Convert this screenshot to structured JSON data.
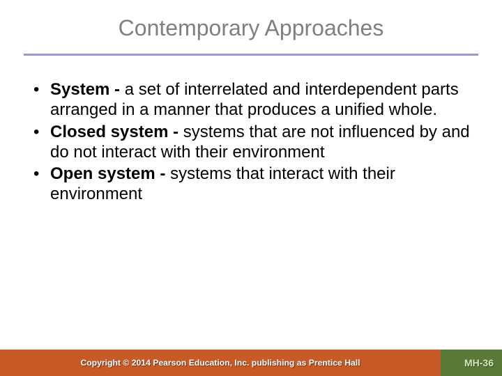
{
  "title": "Contemporary Approaches",
  "title_color": "#808080",
  "title_fontsize": 32,
  "divider_color": "#9999cc",
  "body_fontsize": 24,
  "body_color": "#000000",
  "bullets": [
    {
      "term": "System - ",
      "definition": "a set of interrelated and interdependent parts arranged in a manner that produces a unified whole."
    },
    {
      "term": "Closed system - ",
      "definition": "systems that are not influenced by and do not interact with their environment"
    },
    {
      "term": "Open system - ",
      "definition": "systems that interact with their environment"
    }
  ],
  "footer": {
    "left_bg": "#c85a28",
    "right_bg": "#5a7a3a",
    "left_width": 632,
    "right_width": 88,
    "copyright": "Copyright © 2014 Pearson Education, Inc. publishing as Prentice Hall",
    "copyright_color": "#ffffff",
    "page_number": "MH-36",
    "page_number_color": "#d4e8b8"
  },
  "background_color": "#ffffff"
}
